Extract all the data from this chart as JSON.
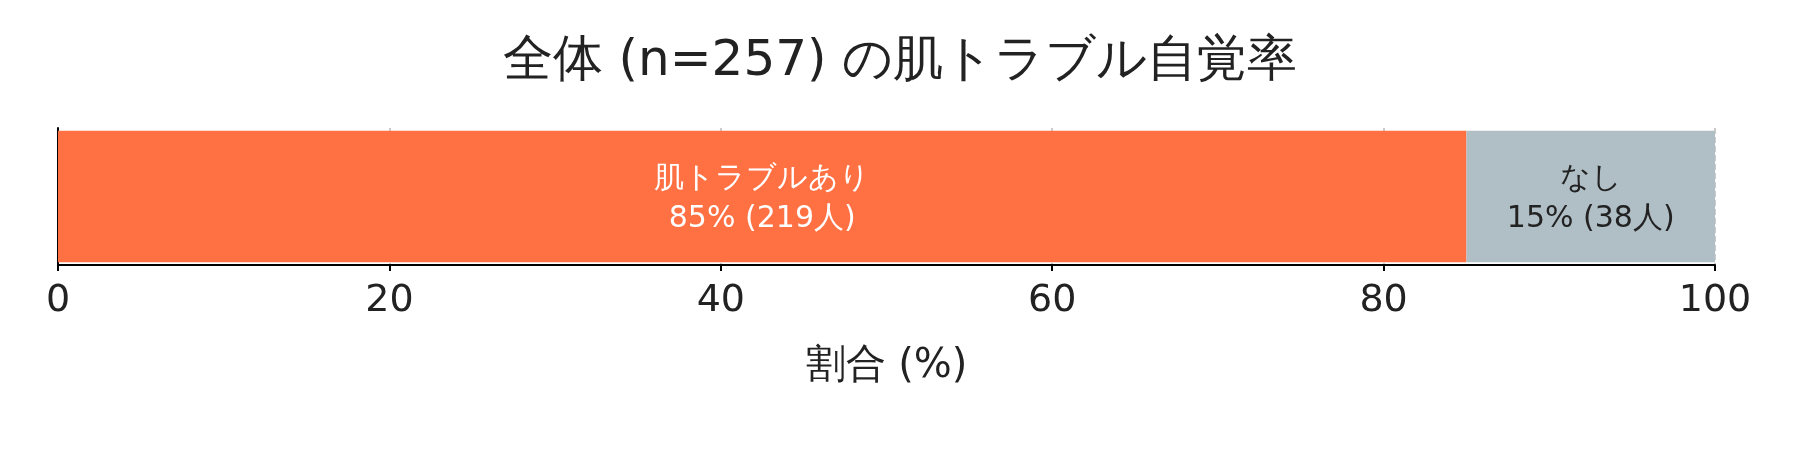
{
  "chart_data": {
    "type": "bar",
    "orientation": "horizontal",
    "stacked": true,
    "title": "全体 (n=257) の肌トラブル自覚率",
    "xlabel": "割合 (%)",
    "categories": [
      null
    ],
    "series": [
      {
        "name": "肌トラブルあり",
        "color": "#ff7043",
        "values": [
          85
        ],
        "value_labels": [
          "85% (219人)"
        ]
      },
      {
        "name": "なし",
        "color": "#b0bec5",
        "values": [
          15
        ],
        "value_labels": [
          "15% (38人)"
        ]
      }
    ],
    "xlim": [
      0,
      100
    ],
    "xticks": [
      0,
      20,
      40,
      60,
      80,
      100
    ],
    "grid": "x",
    "legend": false
  }
}
